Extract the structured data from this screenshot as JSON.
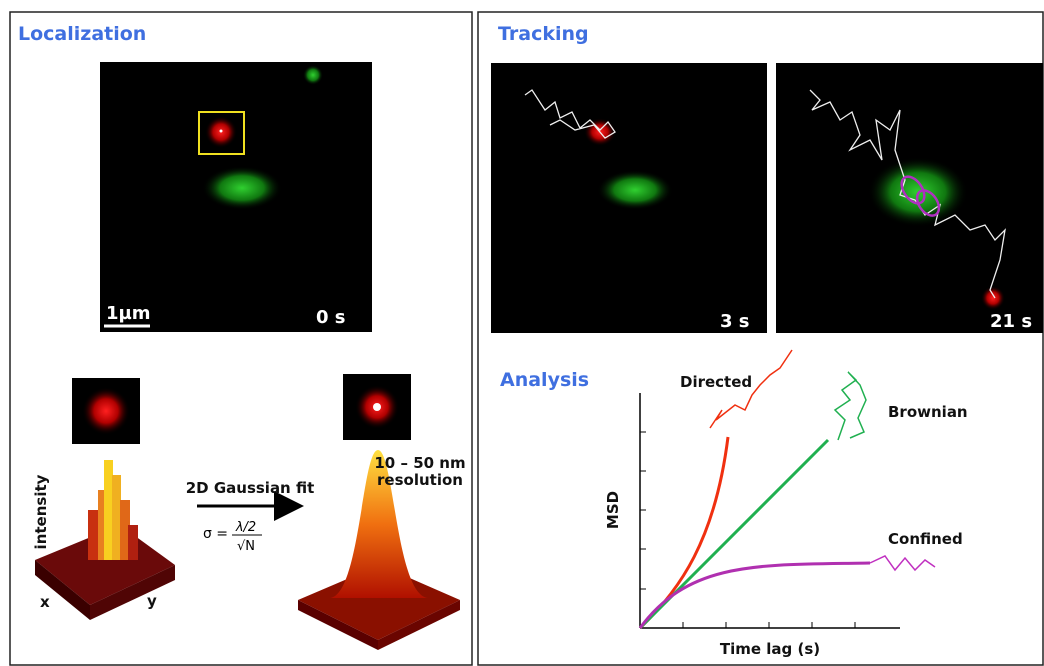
{
  "localization": {
    "title": "Localization",
    "scale_bar": "1µm",
    "time": "0 s",
    "intensity_axis": "intensity",
    "x_axis": "x",
    "y_axis": "y",
    "fit_label": "2D Gaussian fit",
    "sigma_lhs": "σ =",
    "sigma_numerator": "λ/2",
    "sigma_denominator": "√N",
    "resolution_lines": [
      "10 – 50 nm",
      "resolution"
    ]
  },
  "tracking": {
    "title": "Tracking",
    "times": [
      "3 s",
      "21 s"
    ]
  },
  "analysis": {
    "title": "Analysis",
    "y_axis": "MSD",
    "x_axis": "Time lag (s)",
    "modes": [
      "Directed",
      "Brownian",
      "Confined"
    ]
  }
}
